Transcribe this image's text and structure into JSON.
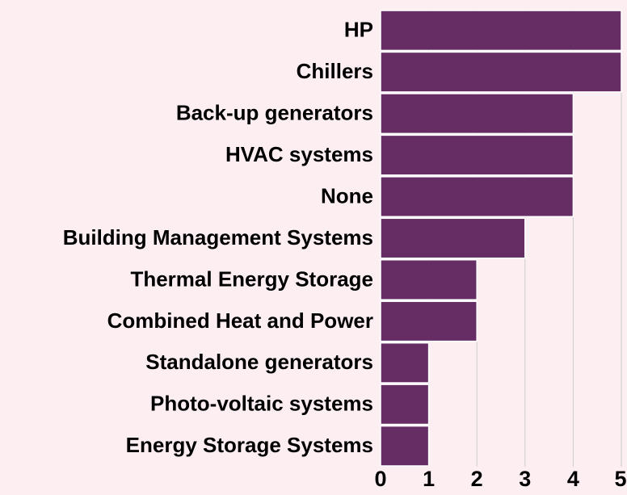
{
  "chart_data": {
    "type": "bar",
    "orientation": "horizontal",
    "categories": [
      "HP",
      "Chillers",
      "Back-up generators",
      "HVAC systems",
      "None",
      "Building Management Systems",
      "Thermal Energy Storage",
      "Combined Heat and Power",
      "Standalone generators",
      "Photo-voltaic systems",
      "Energy Storage Systems"
    ],
    "values": [
      5,
      5,
      4,
      4,
      4,
      3,
      2,
      2,
      1,
      1,
      1
    ],
    "color": "#652d63",
    "xlim": [
      0,
      5
    ],
    "xticks": [
      0,
      1,
      2,
      3,
      4,
      5
    ],
    "grid": true
  }
}
